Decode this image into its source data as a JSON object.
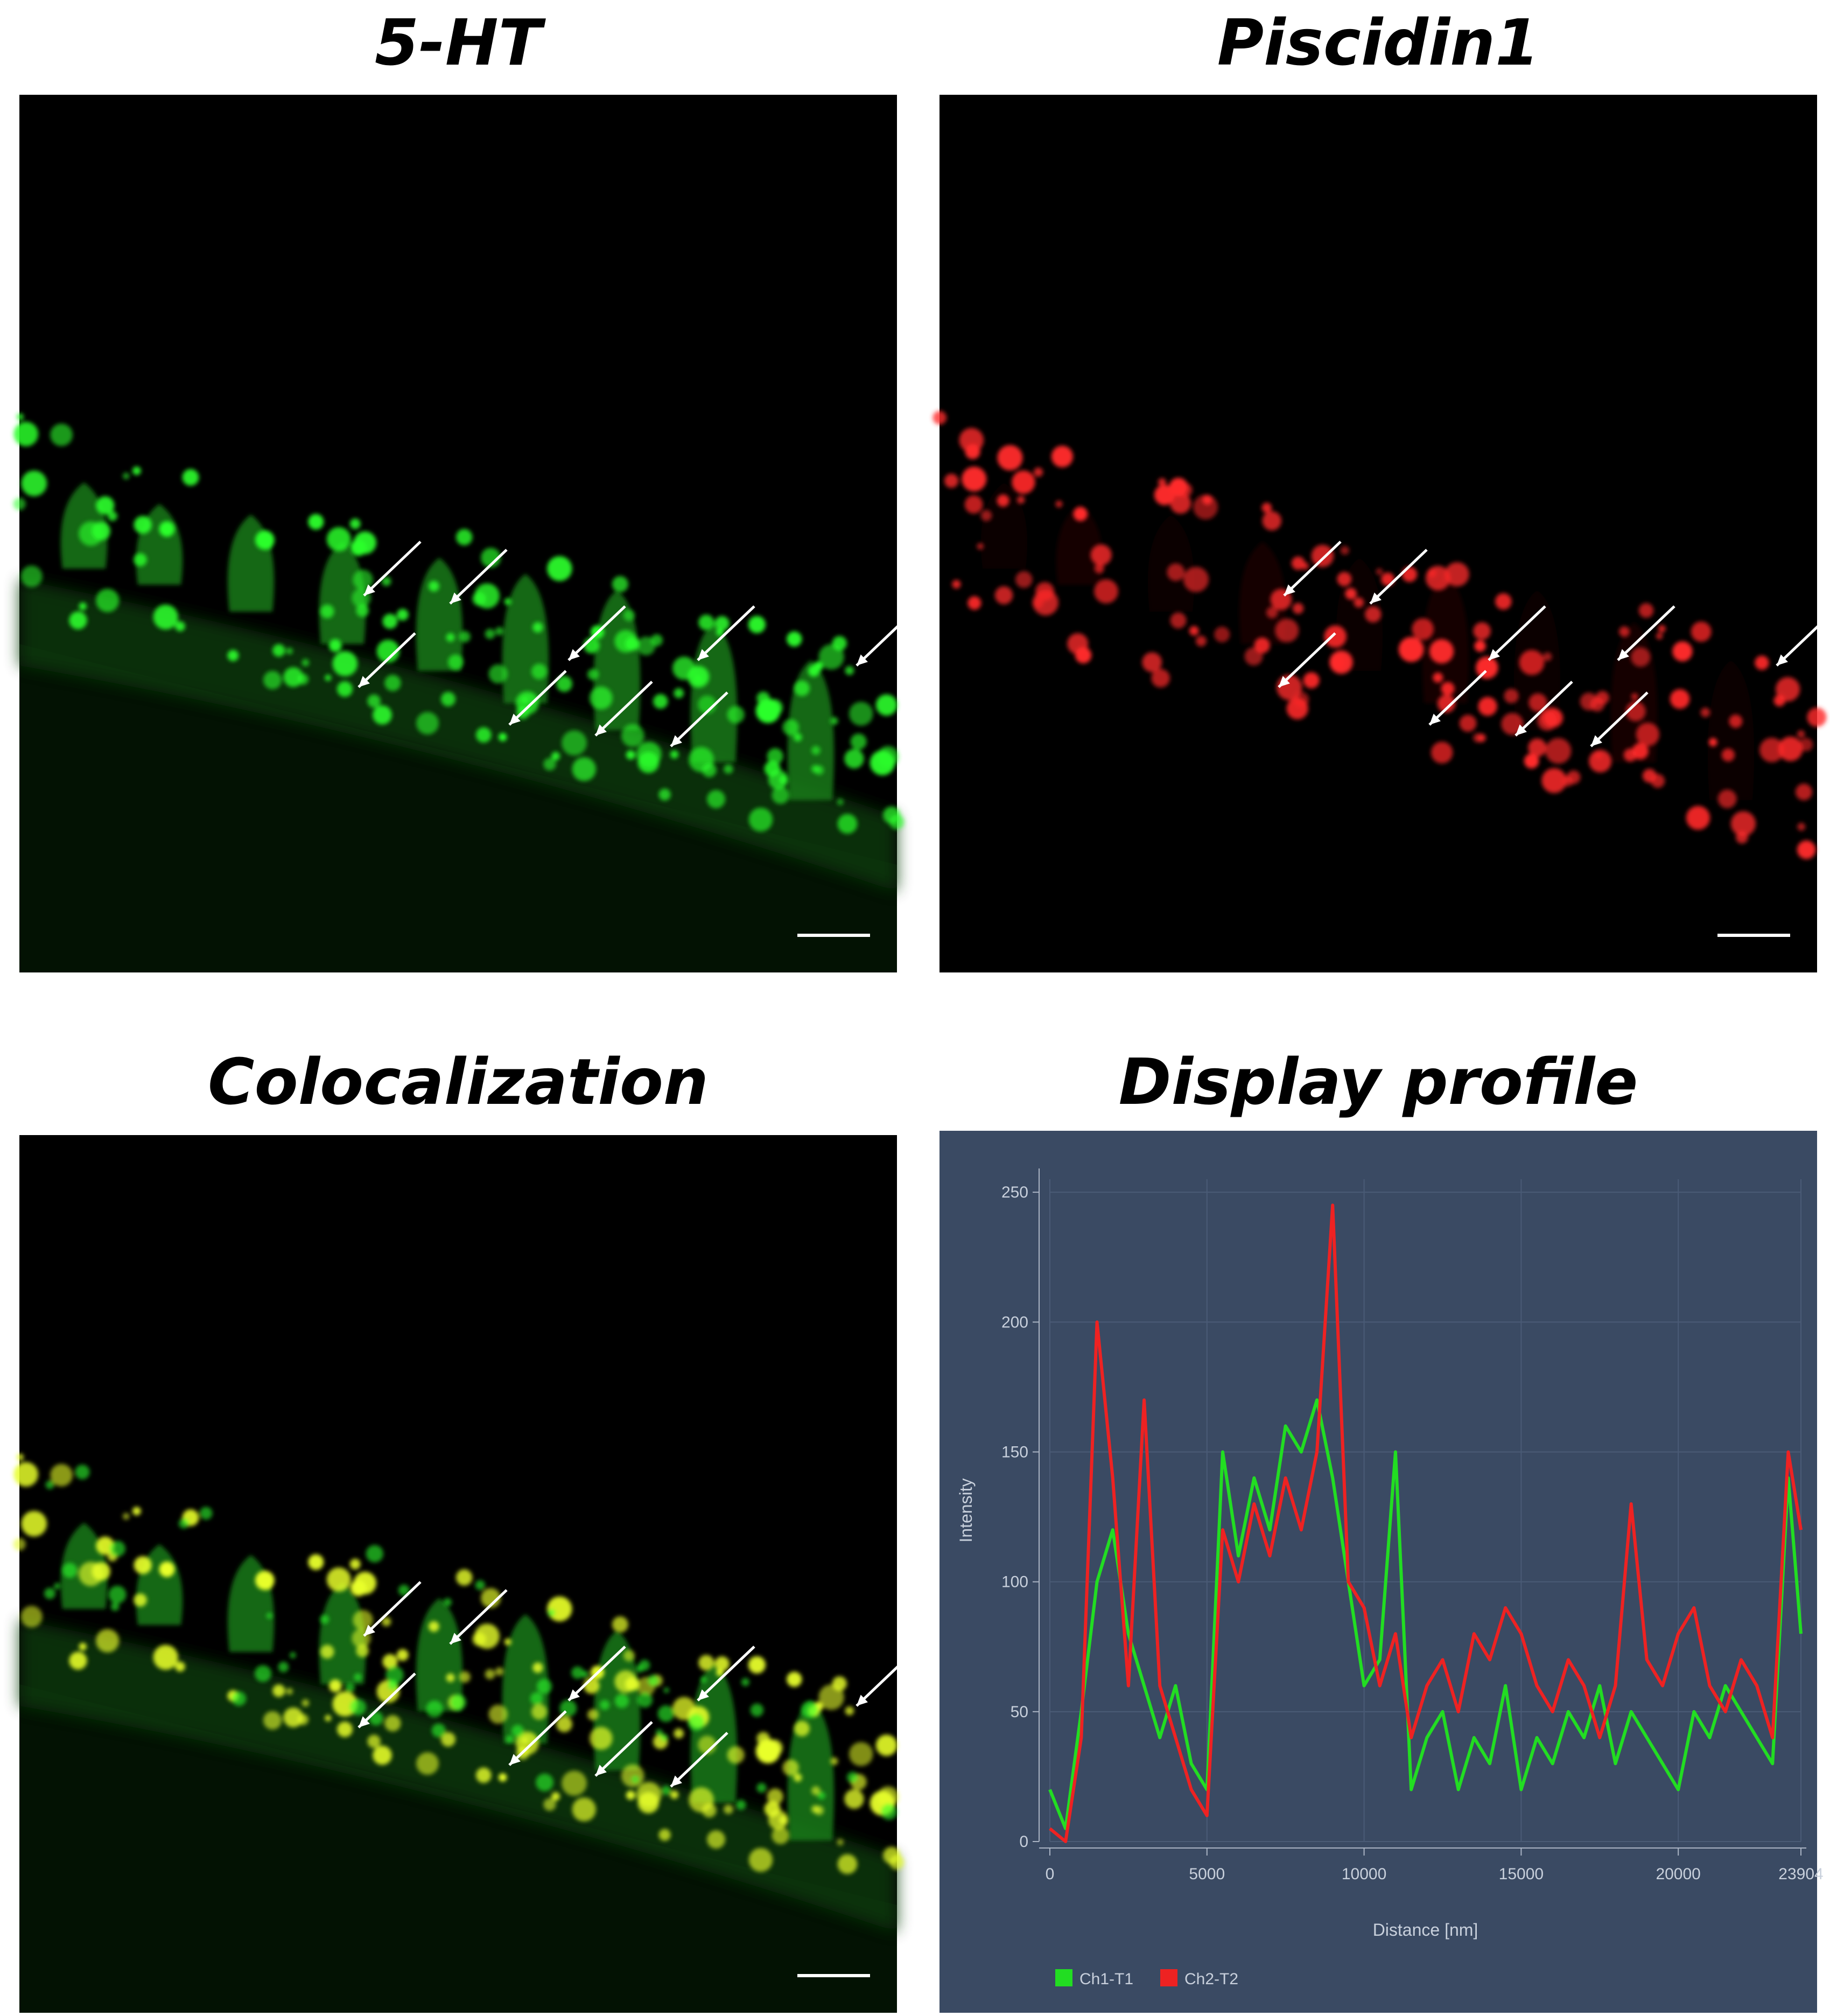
{
  "panels": {
    "top_left_title": "5-HT",
    "top_right_title": "Piscidin1",
    "bottom_left_title": "Colocalization",
    "bottom_right_title": "Display profile"
  },
  "colors": {
    "green_channel": "#2cff2c",
    "red_channel": "#ff2a2a",
    "coloc": "#e8ff2a",
    "plot_bg": "#3a4a63",
    "arrow": "#ffffff"
  },
  "chart_data": {
    "type": "line",
    "xlabel": "Distance [nm]",
    "ylabel": "Intensity",
    "xlim": [
      0,
      23904
    ],
    "ylim": [
      0,
      255
    ],
    "x_ticks": [
      "0",
      "5000",
      "10000",
      "15000",
      "20000",
      "23904"
    ],
    "y_ticks": [
      "0",
      "50",
      "100",
      "150",
      "200",
      "250"
    ],
    "legend_position": "bottom-left",
    "grid": true,
    "series": [
      {
        "name": "Ch1-T1",
        "color": "#22dd22",
        "x": [
          0,
          500,
          1000,
          1500,
          2000,
          2500,
          3000,
          3500,
          4000,
          4500,
          5000,
          5500,
          6000,
          6500,
          7000,
          7500,
          8000,
          8500,
          9000,
          9500,
          10000,
          10500,
          11000,
          11500,
          12000,
          12500,
          13000,
          13500,
          14000,
          14500,
          15000,
          15500,
          16000,
          16500,
          17000,
          17500,
          18000,
          18500,
          19000,
          19500,
          20000,
          20500,
          21000,
          21500,
          22000,
          22500,
          23000,
          23500,
          23904
        ],
        "y": [
          20,
          5,
          50,
          100,
          120,
          80,
          60,
          40,
          60,
          30,
          20,
          150,
          110,
          140,
          120,
          160,
          150,
          170,
          140,
          100,
          60,
          70,
          150,
          20,
          40,
          50,
          20,
          40,
          30,
          60,
          20,
          40,
          30,
          50,
          40,
          60,
          30,
          50,
          40,
          30,
          20,
          50,
          40,
          60,
          50,
          40,
          30,
          140,
          80
        ]
      },
      {
        "name": "Ch2-T2",
        "color": "#ee2222",
        "x": [
          0,
          500,
          1000,
          1500,
          2000,
          2500,
          3000,
          3500,
          4000,
          4500,
          5000,
          5500,
          6000,
          6500,
          7000,
          7500,
          8000,
          8500,
          9000,
          9500,
          10000,
          10500,
          11000,
          11500,
          12000,
          12500,
          13000,
          13500,
          14000,
          14500,
          15000,
          15500,
          16000,
          16500,
          17000,
          17500,
          18000,
          18500,
          19000,
          19500,
          20000,
          20500,
          21000,
          21500,
          22000,
          22500,
          23000,
          23500,
          23904
        ],
        "y": [
          5,
          0,
          40,
          200,
          140,
          60,
          170,
          60,
          40,
          20,
          10,
          120,
          100,
          130,
          110,
          140,
          120,
          150,
          245,
          100,
          90,
          60,
          80,
          40,
          60,
          70,
          50,
          80,
          70,
          90,
          80,
          60,
          50,
          70,
          60,
          40,
          60,
          130,
          70,
          60,
          80,
          90,
          60,
          50,
          70,
          60,
          40,
          150,
          120
        ]
      }
    ]
  }
}
